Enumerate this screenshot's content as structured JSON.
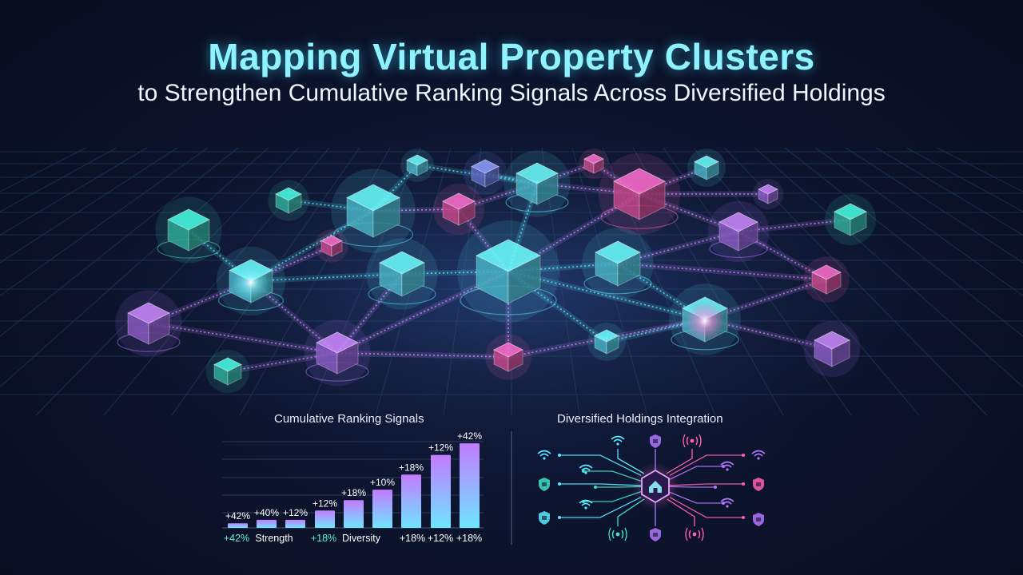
{
  "header": {
    "title": "Mapping Virtual Property Clusters",
    "subtitle": "to Strengthen Cumulative Ranking Signals Across Diversified Holdings"
  },
  "network": {
    "node_color_names": [
      "cyan",
      "teal",
      "violet",
      "magenta",
      "blue"
    ]
  },
  "ranking_panel": {
    "title": "Cumulative Ranking Signals",
    "bar_labels": [
      "+42%",
      "+40%",
      "+12%",
      "+12%",
      "+18%",
      "+10%",
      "+18%",
      "+12%",
      "+42%"
    ],
    "bar_values": [
      4,
      7,
      7,
      15,
      24,
      33,
      46,
      63,
      73
    ],
    "axis_labels": [
      {
        "text": "+42%",
        "color": "#5ef0d0"
      },
      {
        "text": "Strength",
        "color": "#ffffff"
      },
      {
        "text": "+18%",
        "color": "#5ef0d0"
      },
      {
        "text": "Diversity",
        "color": "#ffffff"
      },
      {
        "text": "+18%",
        "color": "#ffffff"
      },
      {
        "text": "+12%",
        "color": "#ffffff"
      },
      {
        "text": "+18%",
        "color": "#ffffff"
      }
    ]
  },
  "holdings_panel": {
    "title": "Diversified Holdings Integration",
    "center_icon": "house-shield-icon",
    "left_icons": [
      "wifi-icon",
      "wifi-icon",
      "shield-icon",
      "shield-icon"
    ],
    "right_icons": [
      "wifi-icon",
      "wifi-icon",
      "shield-icon",
      "shield-icon"
    ],
    "top_icons": [
      "wifi-icon",
      "shield-icon",
      "signal-icon"
    ],
    "bottom_icons": [
      "signal-icon",
      "shield-icon",
      "signal-icon"
    ]
  },
  "colors": {
    "cyan": "#5de8ff",
    "teal": "#3fe0c8",
    "violet": "#b277ff",
    "magenta": "#ff5fb4",
    "accent_title": "#8ff3ff"
  }
}
